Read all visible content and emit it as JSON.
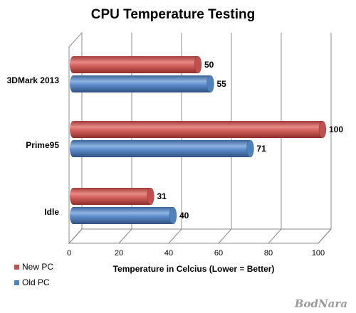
{
  "chart_data": {
    "type": "bar",
    "orientation": "horizontal",
    "title": "CPU Temperature Testing",
    "xlabel": "Temperature in Celcius (Lower = Better)",
    "ylabel": "",
    "categories": [
      "3DMark 2013",
      "Prime95",
      "Idle"
    ],
    "series": [
      {
        "name": "New PC",
        "values": [
          50,
          100,
          31
        ],
        "color": "#c0504d"
      },
      {
        "name": "Old PC",
        "values": [
          55,
          71,
          40
        ],
        "color": "#4f81bd"
      }
    ],
    "xlim": [
      0,
      100
    ],
    "xticks": [
      0,
      20,
      40,
      60,
      80,
      100
    ],
    "grid": true,
    "legend_position": "bottom-left",
    "style": "3d-cylinder"
  },
  "watermark": "BodNara"
}
